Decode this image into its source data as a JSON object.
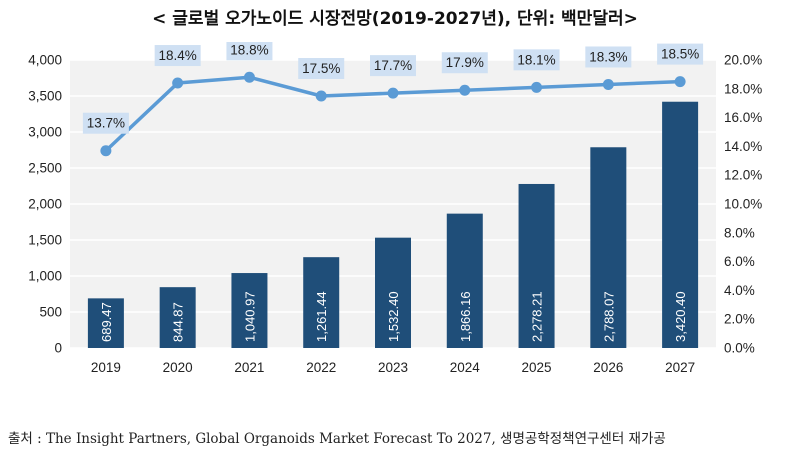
{
  "title": "< 글로벌 오가노이드 시장전망(2019-2027년), 단위: 백만달러>",
  "source": "출처 : The Insight Partners, Global Organoids Market Forecast To 2027, 생명공학정책연구센터 재가공",
  "chart_data": {
    "type": "bar+line",
    "title": "< 글로벌 오가노이드 시장전망(2019-2027년), 단위: 백만달러>",
    "categories": [
      "2019",
      "2020",
      "2021",
      "2022",
      "2023",
      "2024",
      "2025",
      "2026",
      "2027"
    ],
    "series": [
      {
        "type": "bar",
        "axis": "left",
        "color": "#1f4e79",
        "values": [
          689.47,
          844.87,
          1040.97,
          1261.44,
          1532.4,
          1866.16,
          2278.21,
          2788.07,
          3420.4
        ],
        "labels": [
          "689.47",
          "844.87",
          "1,040.97",
          "1,261.44",
          "1,532.40",
          "1,866.16",
          "2,278.21",
          "2,788.07",
          "3,420.40"
        ]
      },
      {
        "type": "line",
        "axis": "right",
        "color": "#5b9bd5",
        "values": [
          13.7,
          18.4,
          18.8,
          17.5,
          17.7,
          17.9,
          18.1,
          18.3,
          18.5
        ],
        "labels": [
          "13.7%",
          "18.4%",
          "18.8%",
          "17.5%",
          "17.7%",
          "17.9%",
          "18.1%",
          "18.3%",
          "18.5%"
        ]
      }
    ],
    "y_left": {
      "range": [
        0,
        4000
      ],
      "ticks": [
        0,
        500,
        1000,
        1500,
        2000,
        2500,
        3000,
        3500,
        4000
      ],
      "tick_labels": [
        "0",
        "500",
        "1,000",
        "1,500",
        "2,000",
        "2,500",
        "3,000",
        "3,500",
        "4,000"
      ]
    },
    "y_right": {
      "range": [
        0,
        20
      ],
      "ticks": [
        0,
        2,
        4,
        6,
        8,
        10,
        12,
        14,
        16,
        18,
        20
      ],
      "tick_labels": [
        "0.0%",
        "2.0%",
        "4.0%",
        "6.0%",
        "8.0%",
        "10.0%",
        "12.0%",
        "14.0%",
        "16.0%",
        "18.0%",
        "20.0%"
      ]
    },
    "grid": true,
    "legend": "none",
    "colors": {
      "plot_background": "#f2f2f2",
      "grid": "#ffffff",
      "label_box": "#cfe0f3"
    }
  }
}
